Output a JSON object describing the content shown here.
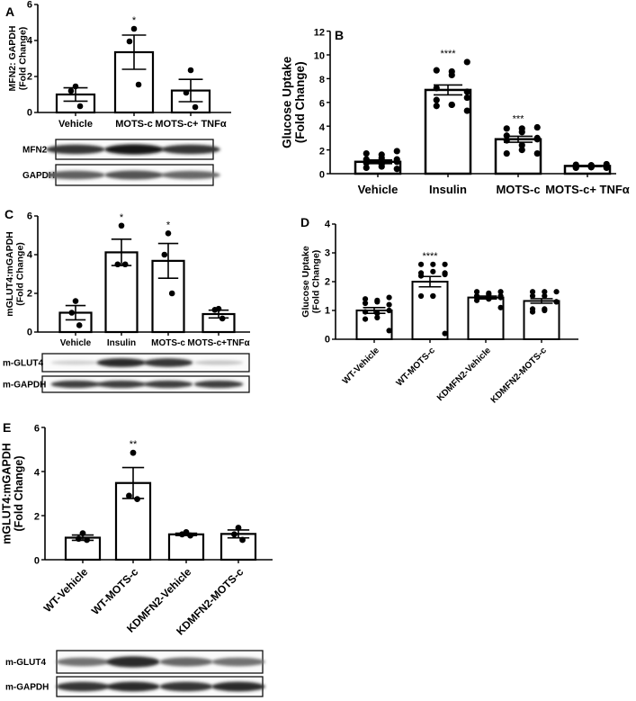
{
  "chart_data": [
    {
      "panel": "A",
      "type": "bar",
      "ylabel": [
        "MFN2: GAPDH",
        "(Fold Change)"
      ],
      "ylim": [
        0,
        6
      ],
      "yticks": [
        0,
        2,
        4,
        6
      ],
      "categories": [
        "Vehicle",
        "MOTS-c",
        "MOTS-c+ TNFα"
      ],
      "values": [
        1.0,
        3.35,
        1.22
      ],
      "errors": [
        0.37,
        0.95,
        0.62
      ],
      "points": [
        [
          1.45,
          1.2,
          0.35
        ],
        [
          4.65,
          3.95,
          1.55
        ],
        [
          2.35,
          1.1,
          0.3
        ]
      ],
      "significance": [
        "",
        "*",
        ""
      ],
      "blots": [
        {
          "label": "MFN2",
          "intensity": [
            0.85,
            1.0,
            0.85
          ]
        },
        {
          "label": "GAPDH",
          "intensity": [
            0.65,
            0.7,
            0.6
          ]
        }
      ]
    },
    {
      "panel": "B",
      "type": "bar",
      "ylabel": [
        "Glucose Uptake",
        "(Fold Change)"
      ],
      "ylim": [
        0,
        12
      ],
      "yticks": [
        0,
        2,
        4,
        6,
        8,
        10,
        12
      ],
      "categories": [
        "Vehicle",
        "Insulin",
        "MOTS-c",
        "MOTS-c+ TNFα"
      ],
      "values": [
        1.0,
        7.05,
        2.9,
        0.65
      ],
      "errors": [
        0.15,
        0.42,
        0.25,
        0.05
      ],
      "points": [
        [
          1.9,
          1.7,
          1.6,
          1.3,
          1.2,
          1.2,
          1.0,
          0.9,
          0.8,
          0.6,
          0.5,
          0.4
        ],
        [
          9.4,
          8.7,
          8.6,
          8.3,
          7.2,
          6.9,
          6.4,
          6.2,
          5.8,
          5.8,
          5.7,
          5.3
        ],
        [
          3.9,
          3.8,
          3.8,
          3.5,
          3.2,
          3.0,
          2.9,
          2.8,
          2.4,
          2.0,
          1.7,
          1.7
        ],
        [
          0.8,
          0.75,
          0.7,
          0.7,
          0.65,
          0.6,
          0.6,
          0.6,
          0.55,
          0.55,
          0.5,
          0.5
        ]
      ],
      "significance": [
        "",
        "****",
        "***",
        ""
      ],
      "blots": []
    },
    {
      "panel": "C",
      "type": "bar",
      "ylabel": [
        "mGLUT4:mGAPDH",
        "(Fold  Change)"
      ],
      "ylim": [
        0,
        6
      ],
      "yticks": [
        0,
        2,
        4,
        6
      ],
      "categories": [
        "Vehicle",
        "Insulin",
        "MOTS-c",
        "MOTS-c+TNFα"
      ],
      "values": [
        1.0,
        4.12,
        3.68,
        0.93
      ],
      "errors": [
        0.37,
        0.68,
        0.9,
        0.2
      ],
      "points": [
        [
          1.6,
          1.0,
          0.35
        ],
        [
          5.5,
          3.5,
          3.5
        ],
        [
          5.1,
          4.0,
          2.0
        ],
        [
          1.2,
          1.15,
          0.7
        ]
      ],
      "significance": [
        "",
        "*",
        "*",
        ""
      ],
      "blots": [
        {
          "label": "m-GLUT4",
          "intensity": [
            0.1,
            0.9,
            0.85,
            0.15
          ]
        },
        {
          "label": "m-GAPDH",
          "intensity": [
            0.8,
            0.8,
            0.8,
            0.8
          ]
        }
      ]
    },
    {
      "panel": "D",
      "type": "bar",
      "ylabel": [
        "Glucose Uptake",
        "(Fold Change)"
      ],
      "ylim": [
        0,
        4
      ],
      "yticks": [
        0,
        1,
        2,
        3,
        4
      ],
      "categories": [
        "WT-Vehicle",
        "WT-MOTS-c",
        "KDMFN2-Vehicle",
        "KDMFN2-MOTS-c"
      ],
      "values": [
        1.0,
        2.0,
        1.45,
        1.33
      ],
      "errors": [
        0.1,
        0.18,
        0.05,
        0.08
      ],
      "points": [
        [
          1.45,
          1.4,
          1.35,
          1.3,
          1.25,
          1.2,
          1.0,
          0.95,
          0.9,
          0.75,
          0.7,
          0.3
        ],
        [
          2.6,
          2.6,
          2.6,
          2.35,
          2.3,
          2.3,
          2.25,
          2.2,
          1.5,
          1.5,
          1.5,
          0.2
        ],
        [
          1.65,
          1.65,
          1.6,
          1.55,
          1.5,
          1.5,
          1.45,
          1.45,
          1.4,
          1.4,
          1.35,
          1.1
        ],
        [
          1.65,
          1.65,
          1.65,
          1.5,
          1.5,
          1.3,
          1.3,
          1.05,
          1.05,
          1.0,
          0.95
        ]
      ],
      "significance": [
        "",
        "****",
        "",
        ""
      ],
      "blots": []
    },
    {
      "panel": "E",
      "type": "bar",
      "ylabel": [
        "mGLUT4:mGAPDH",
        "(Fold  Change)"
      ],
      "ylim": [
        0,
        6
      ],
      "yticks": [
        0,
        2,
        4,
        6
      ],
      "categories": [
        "WT-Vehicle",
        "WT-MOTS-c",
        "KDMFN2-Vehicle",
        "KDMFN2-MOTS-c"
      ],
      "values": [
        1.0,
        3.48,
        1.15,
        1.17
      ],
      "errors": [
        0.12,
        0.7,
        0.05,
        0.18
      ],
      "points": [
        [
          1.2,
          0.95,
          0.9
        ],
        [
          4.85,
          2.9,
          2.75
        ],
        [
          1.25,
          1.15,
          1.1
        ],
        [
          1.45,
          1.15,
          0.9
        ]
      ],
      "significance": [
        "",
        "**",
        "",
        ""
      ],
      "blots": [
        {
          "label": "m-GLUT4",
          "intensity": [
            0.55,
            0.9,
            0.6,
            0.55
          ]
        },
        {
          "label": "m-GAPDH",
          "intensity": [
            0.85,
            0.9,
            0.85,
            0.9
          ]
        }
      ]
    }
  ]
}
